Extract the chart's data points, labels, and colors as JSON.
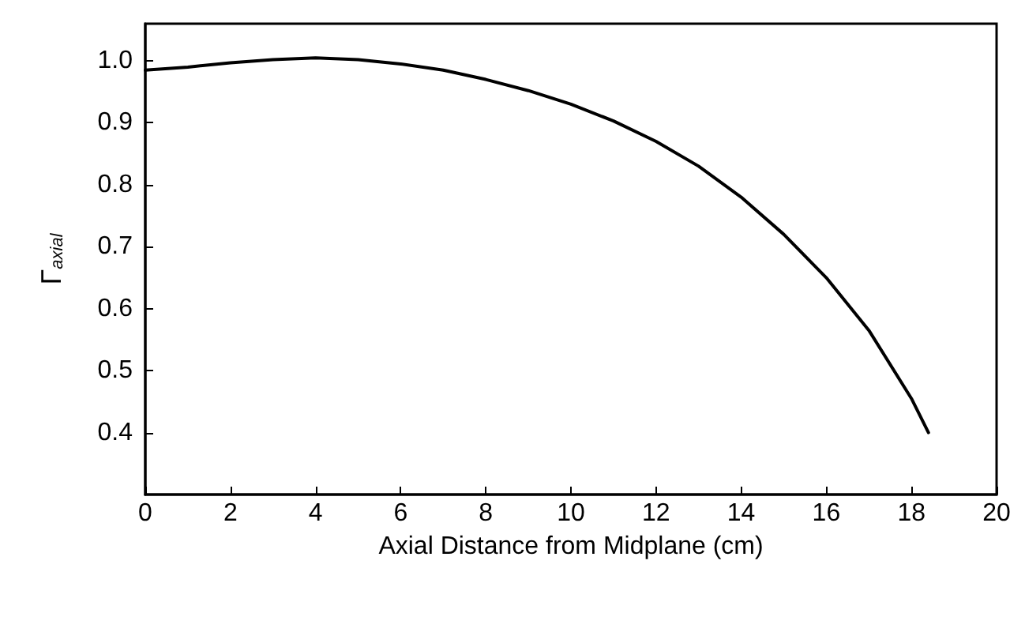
{
  "chart_data": {
    "type": "line",
    "xlabel": "Axial Distance from Midplane (cm)",
    "ylabel": "Γ$_{axial}$",
    "x": [
      0,
      1,
      2,
      3,
      4,
      5,
      6,
      7,
      8,
      9,
      10,
      11,
      12,
      13,
      14,
      15,
      16,
      17,
      18,
      18.4
    ],
    "series": [
      {
        "color": "#000000",
        "values": [
          0.985,
          0.99,
          0.997,
          1.002,
          1.005,
          1.002,
          0.995,
          0.985,
          0.97,
          0.952,
          0.93,
          0.903,
          0.87,
          0.83,
          0.78,
          0.72,
          0.65,
          0.565,
          0.455,
          0.4
        ]
      }
    ],
    "xlim": [
      0,
      20
    ],
    "xticks": [
      0,
      2,
      4,
      6,
      8,
      10,
      12,
      14,
      16,
      18,
      20
    ],
    "ylim": [
      0.3,
      1.06
    ],
    "yticks": [
      {
        "value": 0.4,
        "label": "0.4"
      },
      {
        "value": 0.5,
        "label": "0.5"
      },
      {
        "value": 0.6,
        "label": "0.6"
      },
      {
        "value": 0.7,
        "label": "0.7"
      },
      {
        "value": 0.8,
        "label": "0.8"
      },
      {
        "value": 0.9,
        "label": "0.9"
      },
      {
        "value": 1.0,
        "label": "1.0"
      }
    ],
    "marker": "none",
    "line_style": "solid"
  }
}
